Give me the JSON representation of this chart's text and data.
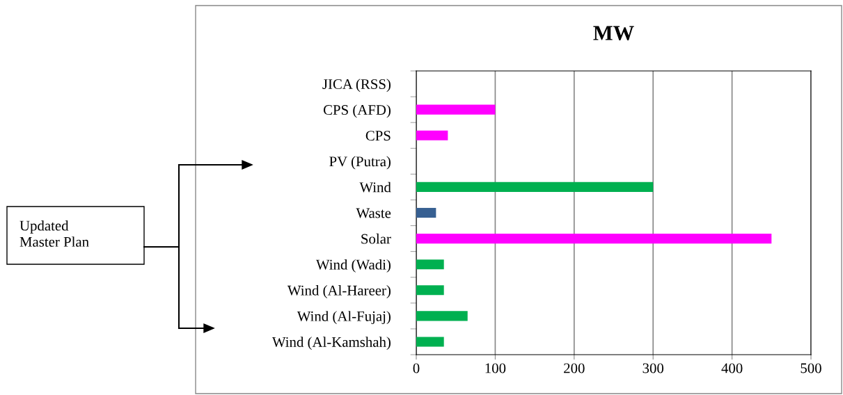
{
  "chart_data": {
    "type": "bar",
    "orientation": "horizontal",
    "title": "MW",
    "categories": [
      "JICA (RSS)",
      "CPS (AFD)",
      "CPS",
      "PV (Putra)",
      "Wind",
      "Waste",
      "Solar",
      "Wind (Wadi)",
      "Wind (Al-Hareer)",
      "Wind (Al-Fujaj)",
      "Wind (Al-Kamshah)"
    ],
    "values": [
      0,
      100,
      40,
      0,
      300,
      25,
      450,
      35,
      35,
      65,
      35
    ],
    "colors": [
      "#ff00ff",
      "#ff00ff",
      "#ff00ff",
      "#00b050",
      "#00b050",
      "#376092",
      "#ff00ff",
      "#00b050",
      "#00b050",
      "#00b050",
      "#00b050"
    ],
    "xlim": [
      0,
      500
    ],
    "xticks": [
      0,
      100,
      200,
      300,
      400,
      500
    ],
    "grid": "x",
    "annotations": [
      "Updated\nMaster Plan"
    ]
  }
}
